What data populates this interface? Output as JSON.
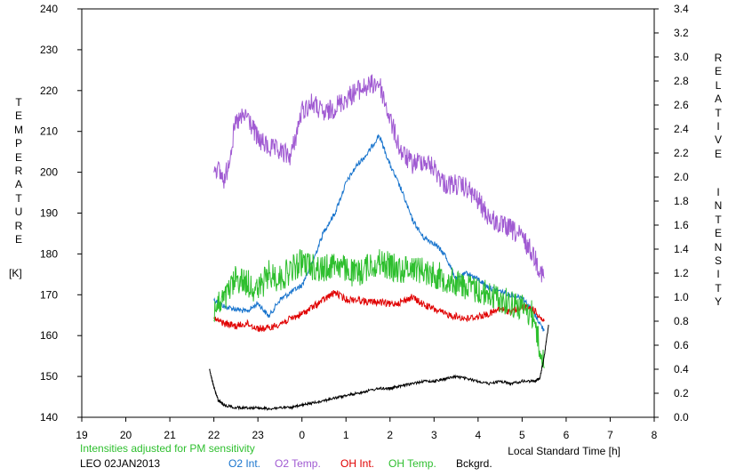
{
  "chart_data": {
    "type": "line",
    "left_axis": {
      "label_letters": [
        "T",
        "E",
        "M",
        "P",
        "E",
        "R",
        "A",
        "T",
        "U",
        "R",
        "E"
      ],
      "unit": "[K]",
      "ylim": [
        140,
        240
      ],
      "ticks": [
        "140",
        "150",
        "160",
        "170",
        "180",
        "190",
        "200",
        "210",
        "220",
        "230",
        "240"
      ]
    },
    "right_axis": {
      "label_letters_1": [
        "R",
        "E",
        "L",
        "A",
        "T",
        "I",
        "V",
        "E"
      ],
      "label_letters_2": [
        "I",
        "N",
        "T",
        "E",
        "N",
        "S",
        "I",
        "T",
        "Y"
      ],
      "ylim": [
        0.0,
        3.4
      ],
      "ticks": [
        "0.0",
        "0.2",
        "0.4",
        "0.6",
        "0.8",
        "1.0",
        "1.2",
        "1.4",
        "1.6",
        "1.8",
        "2.0",
        "2.2",
        "2.4",
        "2.6",
        "2.8",
        "3.0",
        "3.2",
        "3.4"
      ]
    },
    "x_axis": {
      "label": "Local Standard Time [h]",
      "ticks": [
        "19",
        "20",
        "21",
        "22",
        "23",
        "0",
        "1",
        "2",
        "3",
        "4",
        "5",
        "6",
        "7",
        "8"
      ],
      "xlim": [
        19,
        32
      ]
    },
    "note": "Intensities adjusted for PM sensitivity",
    "station": "LEO 02JAN2013",
    "series": [
      {
        "name": "O2 Int.",
        "color": "#1874cd",
        "axis": "right",
        "x": [
          22.0,
          22.25,
          22.5,
          22.75,
          23.0,
          23.25,
          23.5,
          23.75,
          24.0,
          24.25,
          24.5,
          24.75,
          25.0,
          25.25,
          25.5,
          25.75,
          26.0,
          26.25,
          26.5,
          26.75,
          27.0,
          27.25,
          27.5,
          27.75,
          28.0,
          28.25,
          28.5,
          28.75,
          29.0,
          29.25,
          29.5
        ],
        "y": [
          0.98,
          0.92,
          0.9,
          0.88,
          0.95,
          0.84,
          0.98,
          1.04,
          1.1,
          1.3,
          1.55,
          1.7,
          1.95,
          2.1,
          2.2,
          2.35,
          2.1,
          1.9,
          1.65,
          1.5,
          1.45,
          1.35,
          1.15,
          1.2,
          1.15,
          1.08,
          1.05,
          1.02,
          1.0,
          0.88,
          0.72
        ]
      },
      {
        "name": "O2 Temp.",
        "color": "#a05ad2",
        "axis": "left",
        "x": [
          22.0,
          22.25,
          22.5,
          22.75,
          23.0,
          23.25,
          23.5,
          23.75,
          24.0,
          24.25,
          24.5,
          24.75,
          25.0,
          25.25,
          25.5,
          25.75,
          26.0,
          26.25,
          26.5,
          26.75,
          27.0,
          27.25,
          27.5,
          27.75,
          28.0,
          28.25,
          28.5,
          28.75,
          29.0,
          29.25,
          29.5
        ],
        "y": [
          202,
          198,
          212,
          214,
          208,
          206,
          205,
          204,
          215,
          217,
          214,
          216,
          218,
          220,
          221,
          222,
          213,
          205,
          202,
          203,
          201,
          197,
          197,
          196,
          193,
          189,
          187,
          186,
          184,
          180,
          174
        ]
      },
      {
        "name": "OH Int.",
        "color": "#e00000",
        "axis": "right",
        "x": [
          22.0,
          22.25,
          22.5,
          22.75,
          23.0,
          23.25,
          23.5,
          23.75,
          24.0,
          24.25,
          24.5,
          24.75,
          25.0,
          25.25,
          25.5,
          25.75,
          26.0,
          26.25,
          26.5,
          26.75,
          27.0,
          27.25,
          27.5,
          27.75,
          28.0,
          28.25,
          28.5,
          28.75,
          29.0,
          29.25,
          29.5
        ],
        "y": [
          0.82,
          0.78,
          0.76,
          0.78,
          0.74,
          0.74,
          0.78,
          0.82,
          0.86,
          0.92,
          0.98,
          1.04,
          0.98,
          0.98,
          0.96,
          0.96,
          0.94,
          0.96,
          1.0,
          0.94,
          0.9,
          0.86,
          0.84,
          0.82,
          0.84,
          0.86,
          0.9,
          0.88,
          0.92,
          0.9,
          0.8
        ]
      },
      {
        "name": "OH Temp.",
        "color": "#2ebf2e",
        "axis": "left",
        "x": [
          22.0,
          22.25,
          22.5,
          22.75,
          23.0,
          23.25,
          23.5,
          23.75,
          24.0,
          24.25,
          24.5,
          24.75,
          25.0,
          25.25,
          25.5,
          25.75,
          26.0,
          26.25,
          26.5,
          26.75,
          27.0,
          27.25,
          27.5,
          27.75,
          28.0,
          28.25,
          28.5,
          28.75,
          29.0,
          29.25,
          29.5
        ],
        "y": [
          166,
          169,
          174,
          173,
          171,
          175,
          174,
          176,
          178,
          177,
          176,
          178,
          176,
          175,
          177,
          178,
          177,
          176,
          177,
          176,
          175,
          174,
          173,
          172,
          171,
          170,
          169,
          168,
          167,
          165,
          152
        ]
      },
      {
        "name": "Bckgrd.",
        "color": "#000000",
        "axis": "right",
        "x": [
          21.9,
          22.0,
          22.1,
          22.25,
          22.5,
          22.75,
          23.0,
          23.25,
          23.5,
          23.75,
          24.0,
          24.25,
          24.5,
          24.75,
          25.0,
          25.25,
          25.5,
          25.75,
          26.0,
          26.25,
          26.5,
          26.75,
          27.0,
          27.25,
          27.5,
          27.75,
          28.0,
          28.25,
          28.5,
          28.75,
          29.0,
          29.25,
          29.4,
          29.5,
          29.6
        ],
        "y": [
          0.4,
          0.25,
          0.14,
          0.1,
          0.08,
          0.08,
          0.08,
          0.07,
          0.08,
          0.08,
          0.1,
          0.12,
          0.14,
          0.16,
          0.18,
          0.2,
          0.22,
          0.24,
          0.24,
          0.26,
          0.28,
          0.3,
          0.3,
          0.32,
          0.34,
          0.32,
          0.3,
          0.28,
          0.3,
          0.28,
          0.3,
          0.3,
          0.32,
          0.5,
          0.77
        ]
      }
    ]
  }
}
